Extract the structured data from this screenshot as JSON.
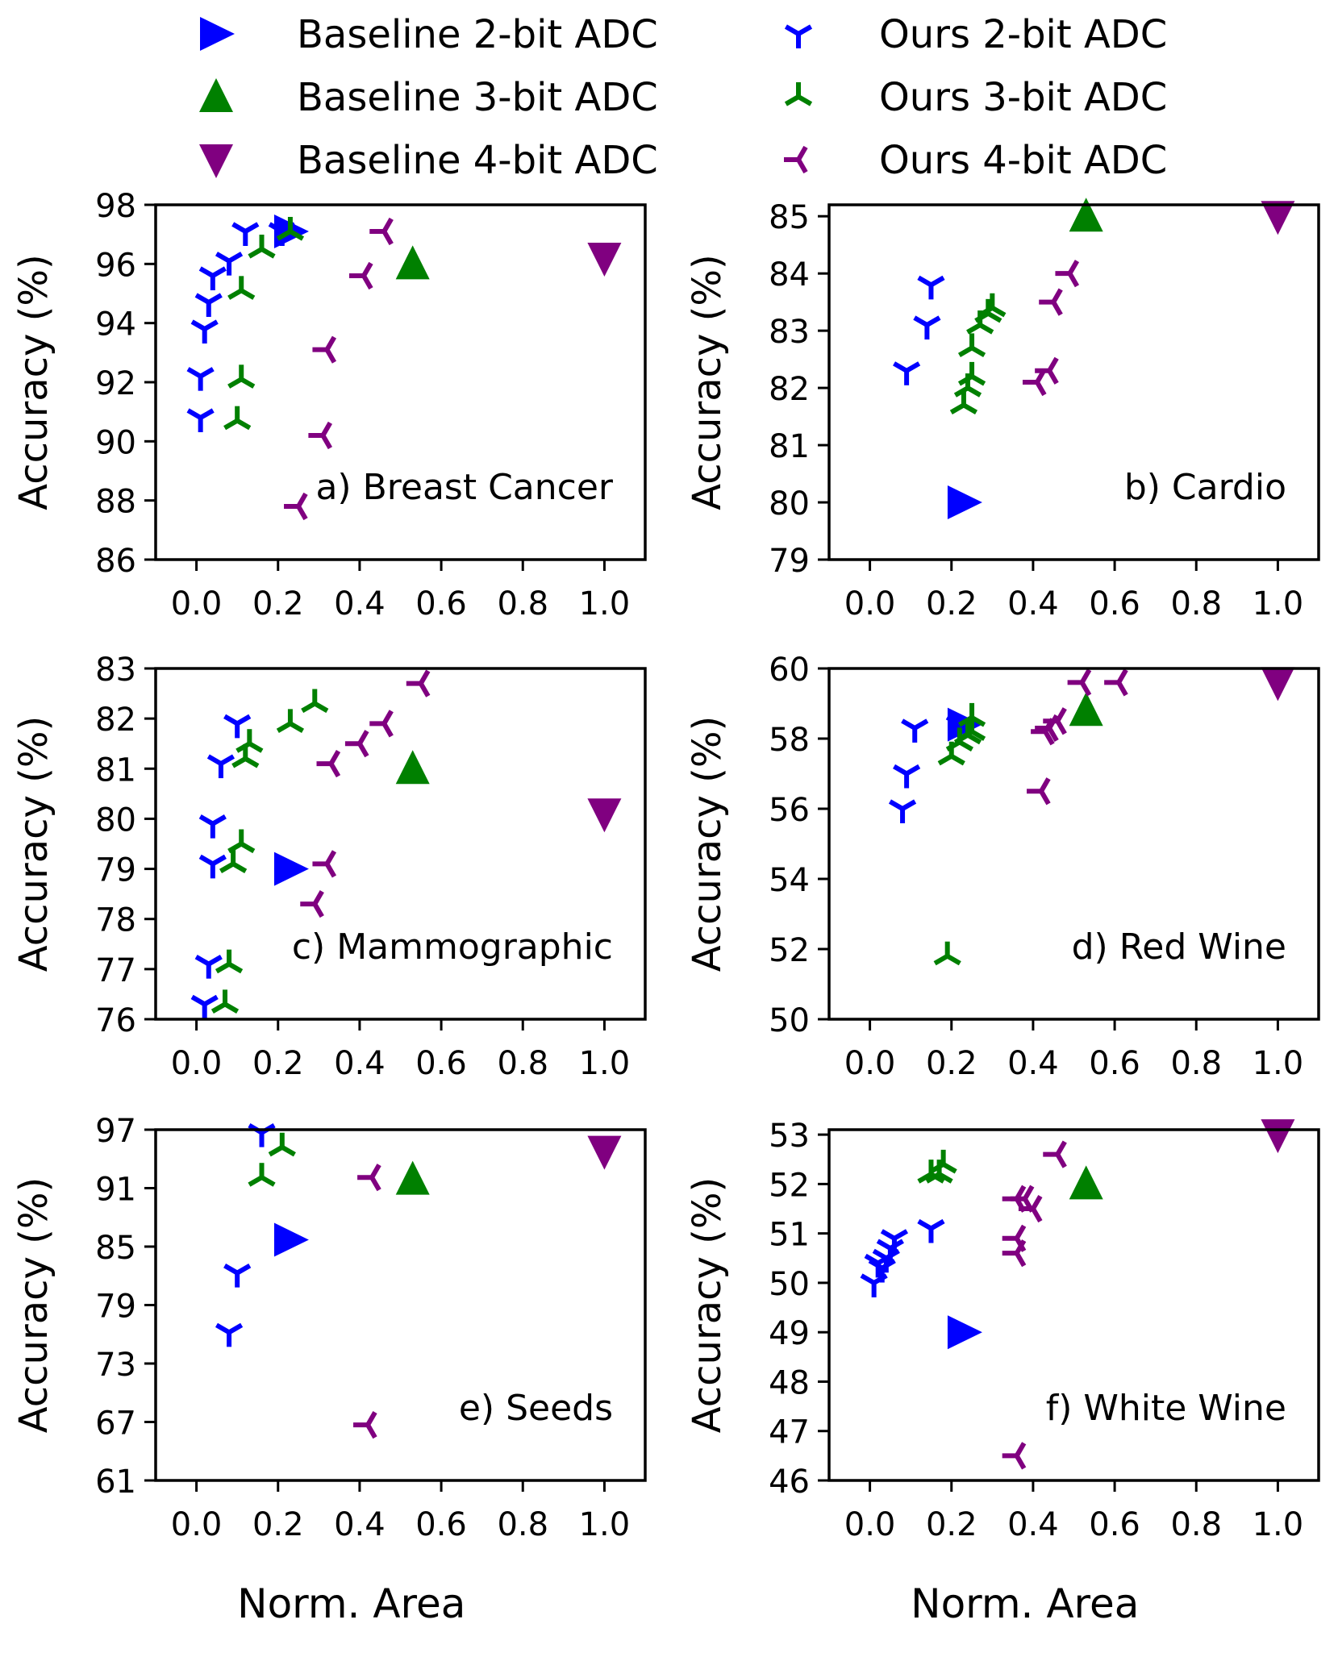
{
  "colors": {
    "blue": "#0000ff",
    "green": "#008000",
    "purple": "#800080"
  },
  "legend": [
    {
      "label": "Baseline 2-bit ADC",
      "marker": "tri-right",
      "color": "blue"
    },
    {
      "label": "Baseline 3-bit ADC",
      "marker": "tri-up",
      "color": "green"
    },
    {
      "label": "Baseline 4-bit ADC",
      "marker": "tri-down",
      "color": "purple"
    },
    {
      "label": "Ours 2-bit ADC",
      "marker": "y-down",
      "color": "blue"
    },
    {
      "label": "Ours 3-bit ADC",
      "marker": "y-up",
      "color": "green"
    },
    {
      "label": "Ours 4-bit ADC",
      "marker": "y-left",
      "color": "purple"
    }
  ],
  "chart_data": [
    {
      "type": "scatter",
      "title": "a) Breast Cancer",
      "xlabel": "",
      "ylabel": "Accuracy (%)",
      "xlim": [
        -0.1,
        1.1
      ],
      "ylim": [
        86,
        98
      ],
      "xticks": [
        "0.0",
        "0.2",
        "0.4",
        "0.6",
        "0.8",
        "1.0"
      ],
      "yticks": [
        "86",
        "88",
        "90",
        "92",
        "94",
        "96",
        "98"
      ],
      "series": [
        {
          "name": "Baseline 2-bit ADC",
          "points": [
            [
              0.23,
              97.1
            ]
          ]
        },
        {
          "name": "Baseline 3-bit ADC",
          "points": [
            [
              0.53,
              96.0
            ]
          ]
        },
        {
          "name": "Baseline 4-bit ADC",
          "points": [
            [
              1.0,
              96.2
            ]
          ]
        },
        {
          "name": "Ours 2-bit ADC",
          "points": [
            [
              0.01,
              90.8
            ],
            [
              0.01,
              92.2
            ],
            [
              0.02,
              93.8
            ],
            [
              0.03,
              94.7
            ],
            [
              0.04,
              95.6
            ],
            [
              0.08,
              96.1
            ],
            [
              0.12,
              97.1
            ],
            [
              0.21,
              97.1
            ]
          ]
        },
        {
          "name": "Ours 3-bit ADC",
          "points": [
            [
              0.1,
              90.7
            ],
            [
              0.11,
              92.1
            ],
            [
              0.11,
              95.1
            ],
            [
              0.16,
              96.5
            ],
            [
              0.23,
              97.1
            ]
          ]
        },
        {
          "name": "Ours 4-bit ADC",
          "points": [
            [
              0.25,
              87.8
            ],
            [
              0.31,
              90.2
            ],
            [
              0.32,
              93.1
            ],
            [
              0.41,
              95.6
            ],
            [
              0.46,
              97.1
            ]
          ]
        }
      ]
    },
    {
      "type": "scatter",
      "title": "b) Cardio",
      "xlabel": "",
      "ylabel": "Accuracy (%)",
      "xlim": [
        -0.1,
        1.1
      ],
      "ylim": [
        79,
        85.2
      ],
      "xticks": [
        "0.0",
        "0.2",
        "0.4",
        "0.6",
        "0.8",
        "1.0"
      ],
      "yticks": [
        "79",
        "80",
        "81",
        "82",
        "83",
        "84",
        "85"
      ],
      "series": [
        {
          "name": "Baseline 2-bit ADC",
          "points": [
            [
              0.23,
              80.0
            ]
          ]
        },
        {
          "name": "Baseline 3-bit ADC",
          "points": [
            [
              0.53,
              85.0
            ]
          ]
        },
        {
          "name": "Baseline 4-bit ADC",
          "points": [
            [
              1.0,
              85.0
            ]
          ]
        },
        {
          "name": "Ours 2-bit ADC",
          "points": [
            [
              0.09,
              82.3
            ],
            [
              0.14,
              83.1
            ],
            [
              0.15,
              83.8
            ]
          ]
        },
        {
          "name": "Ours 3-bit ADC",
          "points": [
            [
              0.23,
              81.7
            ],
            [
              0.24,
              82.0
            ],
            [
              0.25,
              82.2
            ],
            [
              0.25,
              82.7
            ],
            [
              0.27,
              83.1
            ],
            [
              0.29,
              83.3
            ],
            [
              0.3,
              83.4
            ]
          ]
        },
        {
          "name": "Ours 4-bit ADC",
          "points": [
            [
              0.41,
              82.1
            ],
            [
              0.44,
              82.3
            ],
            [
              0.45,
              83.5
            ],
            [
              0.49,
              84.0
            ]
          ]
        }
      ]
    },
    {
      "type": "scatter",
      "title": "c) Mammographic",
      "xlabel": "",
      "ylabel": "Accuracy (%)",
      "xlim": [
        -0.1,
        1.1
      ],
      "ylim": [
        76,
        83
      ],
      "xticks": [
        "0.0",
        "0.2",
        "0.4",
        "0.6",
        "0.8",
        "1.0"
      ],
      "yticks": [
        "76",
        "77",
        "78",
        "79",
        "80",
        "81",
        "82",
        "83"
      ],
      "series": [
        {
          "name": "Baseline 2-bit ADC",
          "points": [
            [
              0.23,
              79.0
            ]
          ]
        },
        {
          "name": "Baseline 3-bit ADC",
          "points": [
            [
              0.53,
              81.0
            ]
          ]
        },
        {
          "name": "Baseline 4-bit ADC",
          "points": [
            [
              1.0,
              80.1
            ]
          ]
        },
        {
          "name": "Ours 2-bit ADC",
          "points": [
            [
              0.02,
              76.3
            ],
            [
              0.03,
              77.1
            ],
            [
              0.04,
              79.1
            ],
            [
              0.04,
              79.9
            ],
            [
              0.06,
              81.1
            ],
            [
              0.1,
              81.9
            ]
          ]
        },
        {
          "name": "Ours 3-bit ADC",
          "points": [
            [
              0.07,
              76.3
            ],
            [
              0.08,
              77.1
            ],
            [
              0.09,
              79.1
            ],
            [
              0.11,
              79.5
            ],
            [
              0.12,
              81.2
            ],
            [
              0.13,
              81.5
            ],
            [
              0.23,
              81.9
            ],
            [
              0.29,
              82.3
            ]
          ]
        },
        {
          "name": "Ours 4-bit ADC",
          "points": [
            [
              0.29,
              78.3
            ],
            [
              0.32,
              79.1
            ],
            [
              0.33,
              81.1
            ],
            [
              0.4,
              81.5
            ],
            [
              0.46,
              81.9
            ],
            [
              0.55,
              82.7
            ]
          ]
        }
      ]
    },
    {
      "type": "scatter",
      "title": "d) Red Wine",
      "xlabel": "",
      "ylabel": "Accuracy (%)",
      "xlim": [
        -0.1,
        1.1
      ],
      "ylim": [
        50,
        60
      ],
      "xticks": [
        "0.0",
        "0.2",
        "0.4",
        "0.6",
        "0.8",
        "1.0"
      ],
      "yticks": [
        "50",
        "52",
        "54",
        "56",
        "58",
        "60"
      ],
      "series": [
        {
          "name": "Baseline 2-bit ADC",
          "points": [
            [
              0.23,
              58.4
            ]
          ]
        },
        {
          "name": "Baseline 3-bit ADC",
          "points": [
            [
              0.53,
              58.8
            ]
          ]
        },
        {
          "name": "Baseline 4-bit ADC",
          "points": [
            [
              1.0,
              59.6
            ]
          ]
        },
        {
          "name": "Ours 2-bit ADC",
          "points": [
            [
              0.08,
              56.0
            ],
            [
              0.09,
              57.0
            ],
            [
              0.11,
              58.3
            ],
            [
              0.22,
              58.4
            ]
          ]
        },
        {
          "name": "Ours 3-bit ADC",
          "points": [
            [
              0.19,
              51.8
            ],
            [
              0.2,
              57.5
            ],
            [
              0.22,
              57.9
            ],
            [
              0.24,
              58.1
            ],
            [
              0.25,
              58.2
            ],
            [
              0.25,
              58.6
            ]
          ]
        },
        {
          "name": "Ours 4-bit ADC",
          "points": [
            [
              0.42,
              56.5
            ],
            [
              0.43,
              58.2
            ],
            [
              0.44,
              58.3
            ],
            [
              0.46,
              58.5
            ],
            [
              0.52,
              59.6
            ],
            [
              0.61,
              59.6
            ]
          ]
        }
      ]
    },
    {
      "type": "scatter",
      "title": "e) Seeds",
      "xlabel": "Norm. Area",
      "ylabel": "Accuracy (%)",
      "xlim": [
        -0.1,
        1.1
      ],
      "ylim": [
        61,
        97
      ],
      "xticks": [
        "0.0",
        "0.2",
        "0.4",
        "0.6",
        "0.8",
        "1.0"
      ],
      "yticks": [
        "61",
        "67",
        "73",
        "79",
        "85",
        "91",
        "97"
      ],
      "series": [
        {
          "name": "Baseline 2-bit ADC",
          "points": [
            [
              0.23,
              85.7
            ]
          ]
        },
        {
          "name": "Baseline 3-bit ADC",
          "points": [
            [
              0.53,
              91.9
            ]
          ]
        },
        {
          "name": "Baseline 4-bit ADC",
          "points": [
            [
              1.0,
              94.8
            ]
          ]
        },
        {
          "name": "Ours 2-bit ADC",
          "points": [
            [
              0.08,
              76.2
            ],
            [
              0.1,
              82.3
            ],
            [
              0.16,
              96.7
            ]
          ]
        },
        {
          "name": "Ours 3-bit ADC",
          "points": [
            [
              0.16,
              92.1
            ],
            [
              0.21,
              95.2
            ]
          ]
        },
        {
          "name": "Ours 4-bit ADC",
          "points": [
            [
              0.42,
              66.7
            ],
            [
              0.43,
              92.1
            ]
          ]
        }
      ]
    },
    {
      "type": "scatter",
      "title": "f) White Wine",
      "xlabel": "Norm. Area",
      "ylabel": "Accuracy (%)",
      "xlim": [
        -0.1,
        1.1
      ],
      "ylim": [
        46,
        53.1
      ],
      "xticks": [
        "0.0",
        "0.2",
        "0.4",
        "0.6",
        "0.8",
        "1.0"
      ],
      "yticks": [
        "46",
        "47",
        "48",
        "49",
        "50",
        "51",
        "52",
        "53"
      ],
      "series": [
        {
          "name": "Baseline 2-bit ADC",
          "points": [
            [
              0.23,
              49.0
            ]
          ]
        },
        {
          "name": "Baseline 3-bit ADC",
          "points": [
            [
              0.53,
              52.0
            ]
          ]
        },
        {
          "name": "Baseline 4-bit ADC",
          "points": [
            [
              1.0,
              53.0
            ]
          ]
        },
        {
          "name": "Ours 2-bit ADC",
          "points": [
            [
              0.01,
              50.0
            ],
            [
              0.02,
              50.4
            ],
            [
              0.03,
              50.3
            ],
            [
              0.04,
              50.5
            ],
            [
              0.05,
              50.7
            ],
            [
              0.06,
              50.9
            ],
            [
              0.15,
              51.1
            ]
          ]
        },
        {
          "name": "Ours 3-bit ADC",
          "points": [
            [
              0.15,
              52.2
            ],
            [
              0.17,
              52.2
            ],
            [
              0.18,
              52.4
            ]
          ]
        },
        {
          "name": "Ours 4-bit ADC",
          "points": [
            [
              0.36,
              46.5
            ],
            [
              0.36,
              50.6
            ],
            [
              0.36,
              50.9
            ],
            [
              0.36,
              51.7
            ],
            [
              0.38,
              51.7
            ],
            [
              0.4,
              51.5
            ],
            [
              0.46,
              52.6
            ]
          ]
        }
      ]
    }
  ]
}
